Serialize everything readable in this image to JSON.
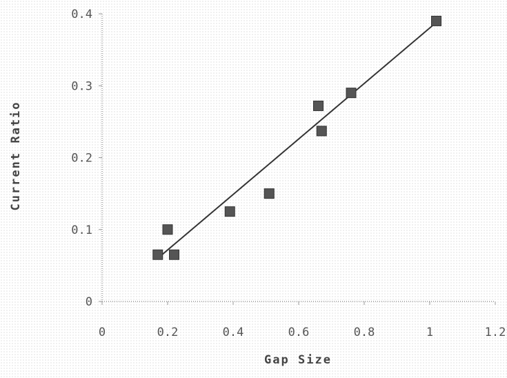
{
  "chart_data": {
    "type": "scatter",
    "title": "",
    "xlabel": "Gap Size",
    "ylabel": "Current Ratio",
    "xlim": [
      0,
      1.2
    ],
    "ylim": [
      0,
      0.4
    ],
    "x_ticks": [
      "0",
      "0.2",
      "0.4",
      "0.6",
      "0.8",
      "1",
      "1.2"
    ],
    "y_ticks": [
      "0",
      "0.1",
      "0.2",
      "0.3",
      "0.4"
    ],
    "grid": false,
    "legend": "none",
    "series": [
      {
        "x": [
          0.17,
          0.2,
          0.22,
          0.39,
          0.51,
          0.66,
          0.67,
          0.76,
          1.02
        ],
        "y": [
          0.065,
          0.1,
          0.065,
          0.125,
          0.15,
          0.272,
          0.237,
          0.29,
          0.39
        ],
        "marker": "square",
        "color": "#555555"
      }
    ],
    "trendline": {
      "x": [
        0.17,
        1.02
      ],
      "y": [
        0.06,
        0.388
      ],
      "color": "#333333"
    }
  }
}
